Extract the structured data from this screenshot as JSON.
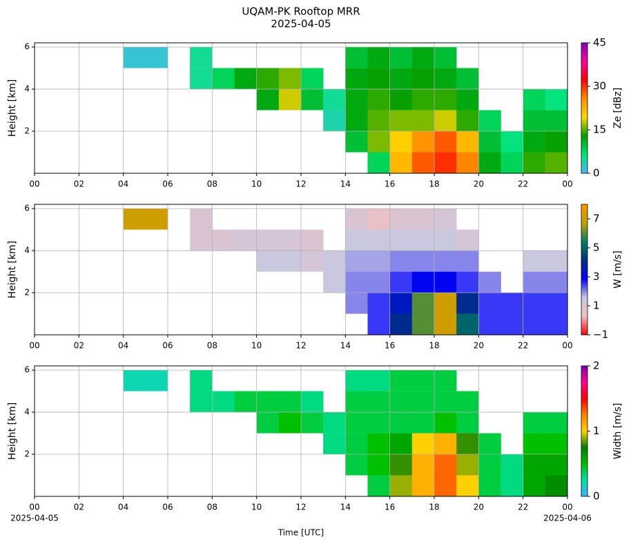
{
  "chart_data": [
    {
      "type": "heatmap",
      "title": "UQAM-PK Rooftop MRR",
      "subtitle": "2025-04-05",
      "ylabel": "Height [km]",
      "xbins": [
        0,
        1,
        2,
        3,
        4,
        5,
        6,
        7,
        8,
        9,
        10,
        11,
        12,
        13,
        14,
        15,
        16,
        17,
        18,
        19,
        20,
        21,
        22,
        23,
        24
      ],
      "ybins": [
        0,
        1,
        2,
        3,
        4,
        5,
        6
      ],
      "values": [
        [
          null,
          null,
          null,
          null,
          null,
          null,
          null,
          null,
          null,
          null,
          null,
          null,
          null,
          null,
          null,
          8,
          22,
          28,
          30,
          26,
          12,
          8,
          14,
          15
        ],
        [
          null,
          null,
          null,
          null,
          null,
          null,
          null,
          null,
          null,
          null,
          null,
          null,
          null,
          null,
          10,
          16,
          20,
          25,
          28,
          22,
          10,
          6,
          12,
          13
        ],
        [
          null,
          null,
          null,
          null,
          null,
          null,
          null,
          null,
          null,
          null,
          null,
          null,
          null,
          4,
          12,
          15,
          16,
          16,
          18,
          14,
          8,
          null,
          10,
          10
        ],
        [
          null,
          null,
          null,
          null,
          null,
          null,
          null,
          null,
          null,
          null,
          12,
          18,
          10,
          5,
          12,
          14,
          13,
          14,
          14,
          12,
          null,
          null,
          8,
          6
        ],
        [
          null,
          null,
          null,
          null,
          null,
          null,
          null,
          5,
          8,
          12,
          14,
          16,
          8,
          null,
          12,
          13,
          12,
          13,
          12,
          10,
          null,
          null,
          null,
          null
        ],
        [
          null,
          null,
          null,
          null,
          2,
          2,
          null,
          5,
          null,
          null,
          null,
          null,
          null,
          null,
          10,
          12,
          10,
          12,
          10,
          null,
          null,
          null,
          null,
          null
        ]
      ],
      "xlim": [
        0,
        24
      ],
      "xticks": [
        {
          "value": 0,
          "label": "00"
        },
        {
          "value": 2,
          "label": "02"
        },
        {
          "value": 4,
          "label": "04"
        },
        {
          "value": 6,
          "label": "06"
        },
        {
          "value": 8,
          "label": "08"
        },
        10,
        12,
        14,
        16,
        18,
        20,
        22,
        {
          "value": 24,
          "label": "00"
        }
      ],
      "ylim": [
        0,
        6.2
      ],
      "yticks": [
        2,
        4,
        6
      ],
      "grid": true,
      "colorbar": {
        "label": "Ze [dBz]",
        "lim": [
          0,
          45
        ],
        "ticks": [
          0,
          15,
          30,
          45
        ],
        "colors": [
          "#4fb3ff",
          "#00e676",
          "#00a000",
          "#ffd700",
          "#ff8c00",
          "#ff0000",
          "#ff00a0",
          "#8000c0"
        ]
      }
    },
    {
      "type": "heatmap",
      "ylabel": "Height [km]",
      "xbins": [
        0,
        1,
        2,
        3,
        4,
        5,
        6,
        7,
        8,
        9,
        10,
        11,
        12,
        13,
        14,
        15,
        16,
        17,
        18,
        19,
        20,
        21,
        22,
        23,
        24
      ],
      "ybins": [
        0,
        1,
        2,
        3,
        4,
        5,
        6
      ],
      "values": [
        [
          null,
          null,
          null,
          null,
          null,
          null,
          null,
          null,
          null,
          null,
          null,
          null,
          null,
          null,
          null,
          2.5,
          4,
          6,
          7,
          5,
          2.5,
          2.5,
          2.5,
          2.5
        ],
        [
          null,
          null,
          null,
          null,
          null,
          null,
          null,
          null,
          null,
          null,
          null,
          null,
          null,
          null,
          2,
          2.5,
          3.5,
          6,
          7,
          4,
          2.5,
          2.5,
          2.5,
          2.5
        ],
        [
          null,
          null,
          null,
          null,
          null,
          null,
          null,
          null,
          null,
          null,
          null,
          null,
          null,
          1.5,
          2,
          2,
          2.5,
          3,
          3,
          2.5,
          2,
          null,
          2,
          2
        ],
        [
          null,
          null,
          null,
          null,
          null,
          null,
          null,
          null,
          null,
          null,
          1.5,
          1.5,
          1.2,
          1.5,
          1.8,
          1.8,
          2,
          2,
          2,
          2,
          null,
          null,
          1.5,
          1.5
        ],
        [
          null,
          null,
          null,
          null,
          null,
          null,
          null,
          1,
          1,
          1.2,
          1.2,
          1.2,
          1,
          null,
          1.5,
          1.5,
          1.5,
          1.5,
          1.5,
          1.2,
          null,
          null,
          null,
          null
        ],
        [
          null,
          null,
          null,
          null,
          7,
          7,
          null,
          1,
          null,
          null,
          null,
          null,
          null,
          null,
          1,
          0.5,
          1,
          1,
          1.2,
          null,
          null,
          null,
          null,
          null
        ]
      ],
      "xlim": [
        0,
        24
      ],
      "xticks": [
        {
          "value": 0,
          "label": "00"
        },
        {
          "value": 2,
          "label": "02"
        },
        {
          "value": 4,
          "label": "04"
        },
        {
          "value": 6,
          "label": "06"
        },
        {
          "value": 8,
          "label": "08"
        },
        10,
        12,
        14,
        16,
        18,
        20,
        22,
        {
          "value": 24,
          "label": "00"
        }
      ],
      "ylim": [
        0,
        6.2
      ],
      "yticks": [
        2,
        4,
        6
      ],
      "grid": true,
      "colorbar": {
        "label": "W [m/s]",
        "lim": [
          -1,
          8
        ],
        "ticks": [
          {
            "value": -1,
            "label": "−1"
          },
          1,
          3,
          5,
          7
        ],
        "colors": [
          "#ff0000",
          "#f0c0c0",
          "#c8c8e0",
          "#0000ff",
          "#003080",
          "#008060",
          "#c0a000",
          "#ff9900"
        ]
      }
    },
    {
      "type": "heatmap",
      "ylabel": "Height [km]",
      "xlabel": "Time [UTC]",
      "xdates": [
        {
          "value": 0,
          "label": "2025-04-05"
        },
        {
          "value": 24,
          "label": "2025-04-06"
        }
      ],
      "xbins": [
        0,
        1,
        2,
        3,
        4,
        5,
        6,
        7,
        8,
        9,
        10,
        11,
        12,
        13,
        14,
        15,
        16,
        17,
        18,
        19,
        20,
        21,
        22,
        23,
        24
      ],
      "ybins": [
        0,
        1,
        2,
        3,
        4,
        5,
        6
      ],
      "values": [
        [
          null,
          null,
          null,
          null,
          null,
          null,
          null,
          null,
          null,
          null,
          null,
          null,
          null,
          null,
          null,
          0.4,
          0.9,
          1.1,
          1.3,
          1.0,
          0.4,
          0.3,
          0.6,
          0.7
        ],
        [
          null,
          null,
          null,
          null,
          null,
          null,
          null,
          null,
          null,
          null,
          null,
          null,
          null,
          null,
          0.4,
          0.5,
          0.8,
          1.1,
          1.3,
          0.9,
          0.4,
          0.3,
          0.6,
          0.6
        ],
        [
          null,
          null,
          null,
          null,
          null,
          null,
          null,
          null,
          null,
          null,
          null,
          null,
          null,
          0.3,
          0.4,
          0.5,
          0.6,
          1.0,
          1.1,
          0.8,
          0.4,
          null,
          0.5,
          0.5
        ],
        [
          null,
          null,
          null,
          null,
          null,
          null,
          null,
          null,
          null,
          null,
          0.4,
          0.5,
          0.4,
          0.3,
          0.4,
          0.4,
          0.4,
          0.4,
          0.5,
          0.4,
          null,
          null,
          0.4,
          0.4
        ],
        [
          null,
          null,
          null,
          null,
          null,
          null,
          null,
          0.3,
          0.3,
          0.4,
          0.4,
          0.4,
          0.3,
          null,
          0.4,
          0.4,
          0.4,
          0.4,
          0.4,
          0.4,
          null,
          null,
          null,
          null
        ],
        [
          null,
          null,
          null,
          null,
          0.2,
          0.2,
          null,
          0.3,
          null,
          null,
          null,
          null,
          null,
          null,
          0.3,
          0.3,
          0.4,
          0.4,
          0.4,
          null,
          null,
          null,
          null,
          null
        ]
      ],
      "xlim": [
        0,
        24
      ],
      "xticks": [
        {
          "value": 0,
          "label": "00"
        },
        {
          "value": 2,
          "label": "02"
        },
        {
          "value": 4,
          "label": "04"
        },
        {
          "value": 6,
          "label": "06"
        },
        {
          "value": 8,
          "label": "08"
        },
        10,
        12,
        14,
        16,
        18,
        20,
        22,
        {
          "value": 24,
          "label": "00"
        }
      ],
      "ylim": [
        0,
        6.2
      ],
      "yticks": [
        2,
        4,
        6
      ],
      "grid": true,
      "colorbar": {
        "label": "Width [m/s]",
        "lim": [
          0,
          2
        ],
        "ticks": [
          0,
          1,
          2
        ],
        "colors": [
          "#40b0ff",
          "#00e0a0",
          "#00c000",
          "#008000",
          "#ffd000",
          "#ff8000",
          "#ff0000",
          "#ff0090",
          "#8000b0"
        ]
      }
    }
  ]
}
